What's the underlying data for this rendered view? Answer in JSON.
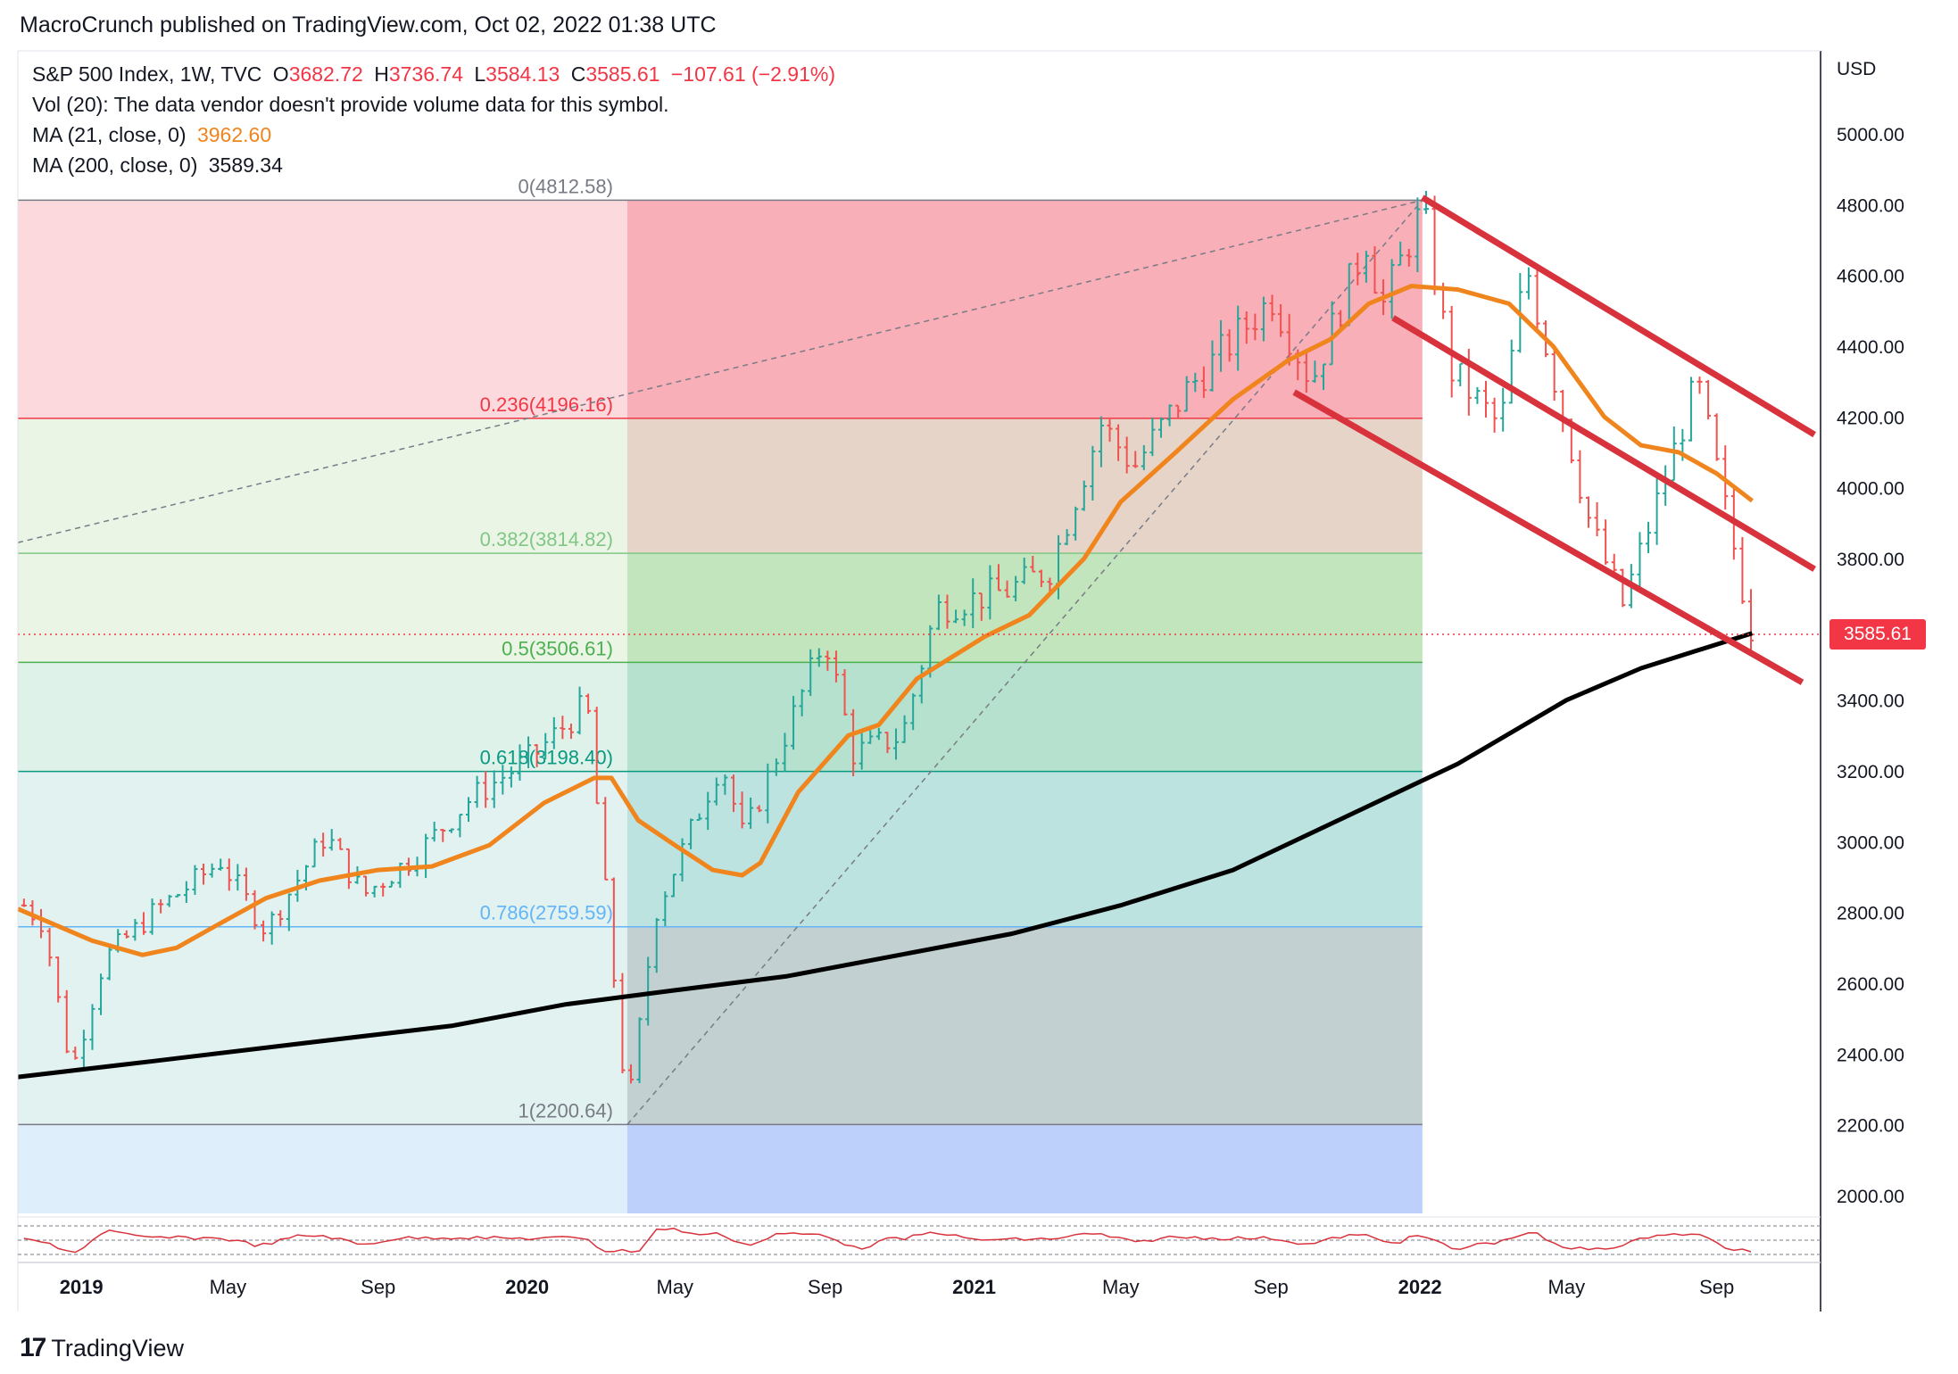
{
  "header": {
    "publisher_line": "MacroCrunch published on TradingView.com, Oct 02, 2022 01:38 UTC"
  },
  "legend": {
    "symbol": "S&P 500 Index, 1W, TVC",
    "open_label": "O",
    "open": "3682.72",
    "high_label": "H",
    "high": "3736.74",
    "low_label": "L",
    "low": "3584.13",
    "close_label": "C",
    "close": "3585.61",
    "change": "−107.61 (−2.91%)",
    "vol": "Vol (20): The data vendor doesn't provide volume data for this symbol.",
    "ma21_label": "MA (21, close, 0)",
    "ma21_value": "3962.60",
    "ma200_label": "MA (200, close, 0)",
    "ma200_value": "3589.34"
  },
  "axis": {
    "unit": "USD",
    "last_price": "3585.61"
  },
  "branding": {
    "logo_text": "TradingView",
    "logo_mark": "17"
  },
  "colors": {
    "up": "#26a69a",
    "down": "#ef5350",
    "ma21": "#f0841d",
    "ma200": "#000000",
    "channel": "#d8323c",
    "last_price": "#f23645"
  },
  "chart_data": {
    "type": "candlestick",
    "title": "",
    "ylabel": "USD",
    "ylim": [
      1950,
      5150
    ],
    "y_ticks": [
      "5000.00",
      "4800.00",
      "4600.00",
      "4400.00",
      "4200.00",
      "4000.00",
      "3800.00",
      "3600.00",
      "3400.00",
      "3200.00",
      "3000.00",
      "2800.00",
      "2600.00",
      "2400.00",
      "2200.00",
      "2000.00"
    ],
    "x_ticks": [
      {
        "label": "2019",
        "date": "2019-01-01",
        "bold": true
      },
      {
        "label": "May",
        "date": "2019-05-01",
        "bold": false
      },
      {
        "label": "Sep",
        "date": "2019-09-01",
        "bold": false
      },
      {
        "label": "2020",
        "date": "2020-01-01",
        "bold": true
      },
      {
        "label": "May",
        "date": "2020-05-01",
        "bold": false
      },
      {
        "label": "Sep",
        "date": "2020-09-01",
        "bold": false
      },
      {
        "label": "2021",
        "date": "2021-01-01",
        "bold": true
      },
      {
        "label": "May",
        "date": "2021-05-01",
        "bold": false
      },
      {
        "label": "Sep",
        "date": "2021-09-01",
        "bold": false
      },
      {
        "label": "2022",
        "date": "2022-01-01",
        "bold": true
      },
      {
        "label": "May",
        "date": "2022-05-01",
        "bold": false
      },
      {
        "label": "Sep",
        "date": "2022-09-01",
        "bold": false
      }
    ],
    "x_range": [
      "2018-11-10",
      "2022-11-25"
    ],
    "price_series": [
      [
        "2018-11-15",
        2820
      ],
      [
        "2018-12-01",
        2770
      ],
      [
        "2018-12-24",
        2350
      ],
      [
        "2019-01-20",
        2670
      ],
      [
        "2019-03-01",
        2800
      ],
      [
        "2019-04-25",
        2945
      ],
      [
        "2019-06-01",
        2750
      ],
      [
        "2019-07-20",
        3020
      ],
      [
        "2019-08-20",
        2850
      ],
      [
        "2019-10-01",
        2960
      ],
      [
        "2019-11-15",
        3120
      ],
      [
        "2020-01-05",
        3240
      ],
      [
        "2020-02-19",
        3390
      ],
      [
        "2020-03-01",
        3000
      ],
      [
        "2020-03-23",
        2230
      ],
      [
        "2020-04-15",
        2800
      ],
      [
        "2020-06-08",
        3230
      ],
      [
        "2020-06-26",
        3010
      ],
      [
        "2020-09-01",
        3580
      ],
      [
        "2020-09-24",
        3250
      ],
      [
        "2020-11-03",
        3300
      ],
      [
        "2020-12-01",
        3660
      ],
      [
        "2021-01-28",
        3710
      ],
      [
        "2021-03-04",
        3770
      ],
      [
        "2021-04-15",
        4180
      ],
      [
        "2021-05-12",
        4060
      ],
      [
        "2021-06-25",
        4280
      ],
      [
        "2021-09-02",
        4537
      ],
      [
        "2021-10-04",
        4300
      ],
      [
        "2021-11-18",
        4700
      ],
      [
        "2021-12-01",
        4510
      ],
      [
        "2022-01-03",
        4790
      ],
      [
        "2022-01-27",
        4330
      ],
      [
        "2022-03-08",
        4170
      ],
      [
        "2022-03-29",
        4630
      ],
      [
        "2022-05-20",
        3900
      ],
      [
        "2022-06-16",
        3670
      ],
      [
        "2022-08-16",
        4300
      ],
      [
        "2022-09-12",
        3880
      ],
      [
        "2022-09-30",
        3585
      ]
    ],
    "ma21_points": [
      [
        "2018-11-10",
        2810
      ],
      [
        "2019-01-10",
        2720
      ],
      [
        "2019-02-20",
        2680
      ],
      [
        "2019-03-20",
        2700
      ],
      [
        "2019-04-20",
        2760
      ],
      [
        "2019-06-01",
        2840
      ],
      [
        "2019-07-15",
        2890
      ],
      [
        "2019-09-01",
        2920
      ],
      [
        "2019-10-15",
        2930
      ],
      [
        "2019-12-01",
        2990
      ],
      [
        "2020-01-15",
        3110
      ],
      [
        "2020-02-25",
        3180
      ],
      [
        "2020-03-10",
        3180
      ],
      [
        "2020-04-01",
        3060
      ],
      [
        "2020-05-01",
        2990
      ],
      [
        "2020-06-01",
        2920
      ],
      [
        "2020-06-25",
        2905
      ],
      [
        "2020-07-10",
        2940
      ],
      [
        "2020-08-10",
        3140
      ],
      [
        "2020-09-20",
        3300
      ],
      [
        "2020-10-15",
        3330
      ],
      [
        "2020-11-15",
        3460
      ],
      [
        "2021-01-10",
        3580
      ],
      [
        "2021-02-15",
        3640
      ],
      [
        "2021-04-01",
        3800
      ],
      [
        "2021-05-01",
        3960
      ],
      [
        "2021-06-15",
        4100
      ],
      [
        "2021-08-01",
        4250
      ],
      [
        "2021-09-15",
        4360
      ],
      [
        "2021-10-20",
        4420
      ],
      [
        "2021-11-20",
        4520
      ],
      [
        "2021-12-25",
        4570
      ],
      [
        "2022-02-01",
        4560
      ],
      [
        "2022-03-15",
        4520
      ],
      [
        "2022-04-20",
        4400
      ],
      [
        "2022-06-01",
        4200
      ],
      [
        "2022-07-01",
        4120
      ],
      [
        "2022-08-01",
        4100
      ],
      [
        "2022-09-01",
        4040
      ],
      [
        "2022-09-30",
        3963
      ]
    ],
    "ma200_points": [
      [
        "2018-11-10",
        2335
      ],
      [
        "2019-03-01",
        2380
      ],
      [
        "2019-07-01",
        2430
      ],
      [
        "2019-11-01",
        2480
      ],
      [
        "2020-02-01",
        2540
      ],
      [
        "2020-05-01",
        2580
      ],
      [
        "2020-08-01",
        2620
      ],
      [
        "2020-11-01",
        2680
      ],
      [
        "2021-02-01",
        2740
      ],
      [
        "2021-05-01",
        2820
      ],
      [
        "2021-08-01",
        2920
      ],
      [
        "2021-11-01",
        3070
      ],
      [
        "2022-02-01",
        3220
      ],
      [
        "2022-05-01",
        3400
      ],
      [
        "2022-07-01",
        3490
      ],
      [
        "2022-09-30",
        3589
      ]
    ],
    "fib_retracement": {
      "anchor_low": {
        "date": "2020-03-23",
        "price": 2200.64
      },
      "anchor_high": {
        "date": "2022-01-03",
        "price": 4812.58
      },
      "levels": [
        {
          "label": "0(4812.58)",
          "ratio": 0,
          "price": 4812.58
        },
        {
          "label": "0.236(4196.16)",
          "ratio": 0.236,
          "price": 4196.16
        },
        {
          "label": "0.382(3814.82)",
          "ratio": 0.382,
          "price": 3814.82
        },
        {
          "label": "0.5(3506.61)",
          "ratio": 0.5,
          "price": 3506.61
        },
        {
          "label": "0.618(3198.40)",
          "ratio": 0.618,
          "price": 3198.4
        },
        {
          "label": "0.786(2759.59)",
          "ratio": 0.786,
          "price": 2759.59
        },
        {
          "label": "1(2200.64)",
          "ratio": 1,
          "price": 2200.64
        }
      ]
    },
    "trend_channel": [
      {
        "from": [
          "2022-01-03",
          4820
        ],
        "to": [
          "2022-11-20",
          4150
        ]
      },
      {
        "from": [
          "2021-12-10",
          4480
        ],
        "to": [
          "2022-11-20",
          3770
        ]
      },
      {
        "from": [
          "2021-09-20",
          4270
        ],
        "to": [
          "2022-11-10",
          3450
        ]
      }
    ],
    "last_price": 3585.61,
    "grid": false
  }
}
